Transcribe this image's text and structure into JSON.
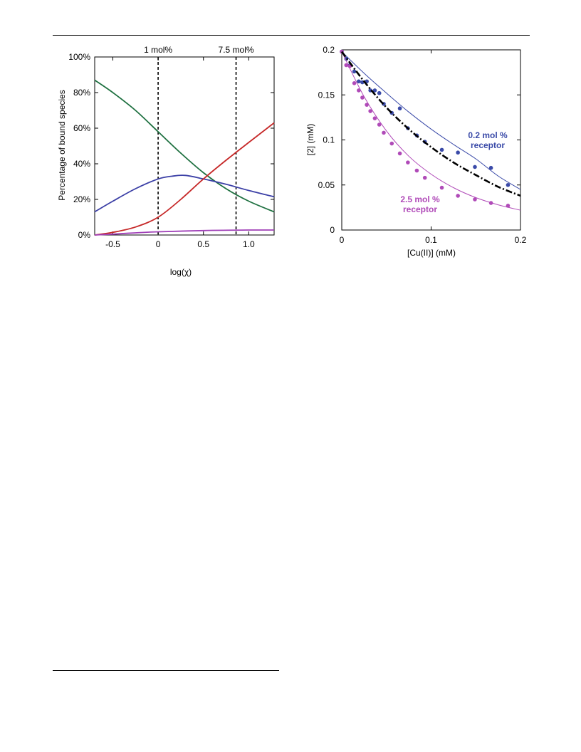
{
  "chart_data": [
    {
      "type": "line",
      "xlabel": "log(χ)",
      "ylabel": "Percentage of bound species",
      "xlim": [
        -0.7,
        1.28
      ],
      "ylim": [
        0,
        100
      ],
      "xticks": [
        -0.5,
        0,
        0.5,
        1.0
      ],
      "xtick_labels": [
        "-0.5",
        "0",
        "0.5",
        "1.0"
      ],
      "yticks": [
        0,
        20,
        40,
        60,
        80,
        100
      ],
      "ytick_labels": [
        "0%",
        "20%",
        "40%",
        "60%",
        "80%",
        "100%"
      ],
      "grid": false,
      "vlines": [
        {
          "x": 0,
          "label": "1 mol%"
        },
        {
          "x": 0.86,
          "label": "7.5 mol%"
        }
      ],
      "series": [
        {
          "color": "#1e7040",
          "x": [
            -0.7,
            -0.5,
            -0.25,
            0,
            0.25,
            0.5,
            0.75,
            1.0,
            1.28
          ],
          "y": [
            87,
            80,
            70,
            58,
            46,
            35,
            26,
            19,
            13
          ]
        },
        {
          "color": "#3b3fa6",
          "x": [
            -0.7,
            -0.5,
            -0.25,
            0,
            0.15,
            0.3,
            0.5,
            0.75,
            1.0,
            1.28
          ],
          "y": [
            13,
            19,
            26,
            31.5,
            33,
            33.5,
            31.5,
            28.5,
            25,
            21.5
          ]
        },
        {
          "color": "#c62828",
          "x": [
            -0.7,
            -0.5,
            -0.25,
            0,
            0.25,
            0.5,
            0.75,
            1.0,
            1.28
          ],
          "y": [
            0,
            1.5,
            4.5,
            10,
            20,
            31.5,
            42,
            52,
            63
          ]
        },
        {
          "color": "#a040b8",
          "x": [
            -0.7,
            -0.5,
            -0.25,
            0,
            0.5,
            1.0,
            1.28
          ],
          "y": [
            0,
            0.5,
            1.2,
            1.8,
            2.5,
            2.8,
            2.8
          ]
        }
      ]
    },
    {
      "type": "scatter",
      "xlabel": "[Cu(II)] (mM)",
      "ylabel": "[2] (mM)",
      "xlim": [
        0,
        0.2
      ],
      "ylim": [
        0,
        0.2
      ],
      "xticks": [
        0,
        0.1,
        0.2
      ],
      "xtick_labels": [
        "0",
        "0.1",
        "0.2"
      ],
      "yticks": [
        0,
        0.05,
        0.1,
        0.15,
        0.2
      ],
      "ytick_labels": [
        "0",
        "0.05",
        "0.1",
        "0.15",
        "0.2"
      ],
      "grid": false,
      "series": [
        {
          "name": "0.2 mol %\nreceptor",
          "label_lines": [
            "0.2 mol %",
            "receptor"
          ],
          "color": "#3a4aa8",
          "points_x": [
            0.0,
            0.005,
            0.009,
            0.014,
            0.019,
            0.023,
            0.028,
            0.032,
            0.037,
            0.042,
            0.047,
            0.056,
            0.065,
            0.074,
            0.084,
            0.093,
            0.112,
            0.13,
            0.149,
            0.167,
            0.186
          ],
          "points_y": [
            0.198,
            0.19,
            0.183,
            0.176,
            0.165,
            0.164,
            0.165,
            0.155,
            0.155,
            0.152,
            0.14,
            0.13,
            0.135,
            0.113,
            0.105,
            0.098,
            0.089,
            0.086,
            0.07,
            0.069,
            0.05
          ],
          "fit_x": [
            0,
            0.025,
            0.05,
            0.075,
            0.1,
            0.125,
            0.15,
            0.175,
            0.2
          ],
          "fit_y": [
            0.198,
            0.174,
            0.152,
            0.131,
            0.112,
            0.095,
            0.079,
            0.06,
            0.045
          ]
        },
        {
          "name": "2.5 mol %\nreceptor",
          "label_lines": [
            "2.5 mol %",
            "receptor"
          ],
          "color": "#b04ab8",
          "points_x": [
            0.0,
            0.005,
            0.009,
            0.014,
            0.019,
            0.023,
            0.028,
            0.032,
            0.037,
            0.042,
            0.047,
            0.056,
            0.065,
            0.074,
            0.084,
            0.093,
            0.112,
            0.13,
            0.149,
            0.167,
            0.186
          ],
          "points_y": [
            0.198,
            0.183,
            0.182,
            0.163,
            0.155,
            0.147,
            0.139,
            0.132,
            0.124,
            0.117,
            0.108,
            0.096,
            0.085,
            0.075,
            0.066,
            0.058,
            0.047,
            0.038,
            0.034,
            0.03,
            0.027
          ],
          "fit_x": [
            0,
            0.025,
            0.05,
            0.075,
            0.1,
            0.125,
            0.15,
            0.175,
            0.2
          ],
          "fit_y": [
            0.198,
            0.148,
            0.11,
            0.082,
            0.062,
            0.047,
            0.036,
            0.028,
            0.022
          ]
        },
        {
          "color": "#000000",
          "dash": true,
          "fit_x": [
            0,
            0.025,
            0.05,
            0.075,
            0.1,
            0.125,
            0.15,
            0.175,
            0.2
          ],
          "fit_y": [
            0.198,
            0.165,
            0.136,
            0.112,
            0.092,
            0.075,
            0.061,
            0.048,
            0.038
          ]
        }
      ]
    }
  ]
}
